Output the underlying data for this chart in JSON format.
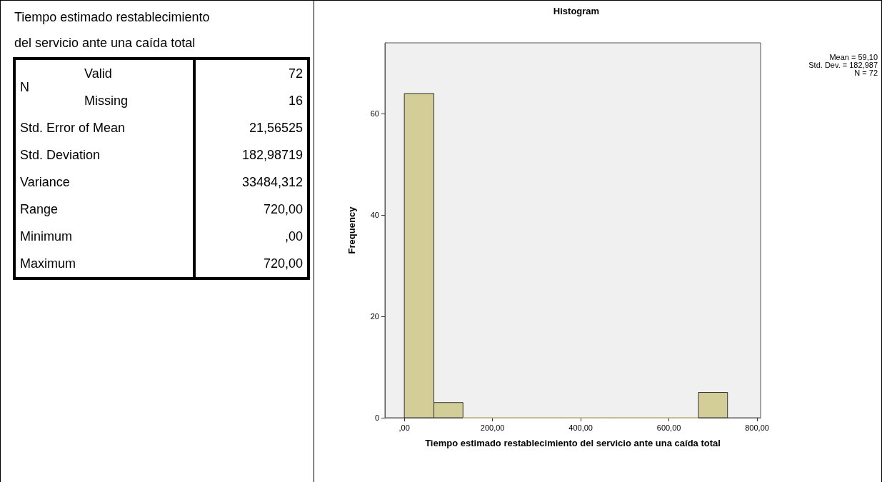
{
  "chart_data": [
    {
      "type": "other",
      "title": "Tiempo estimado restablecimiento del servicio ante una caída total",
      "annotations": [
        "N",
        "Valid",
        "72",
        "Missing",
        "16",
        "Std. Error of Mean",
        "21,56525",
        "Std. Deviation",
        "182,98719",
        "Variance",
        "33484,312",
        "Range",
        "720,00",
        "Minimum",
        ",00",
        "Maximum",
        "720,00"
      ]
    },
    {
      "type": "histogram",
      "title": "Histogram",
      "xlabel": "Tiempo estimado restablecimiento del servicio ante una caída total",
      "ylabel": "Frequency",
      "bins": [
        0,
        67,
        133,
        200,
        267,
        333,
        400,
        467,
        533,
        600,
        667,
        733
      ],
      "values": [
        64,
        3,
        0,
        0,
        0,
        0,
        0,
        0,
        0,
        0,
        5
      ],
      "color": "#d3ce97",
      "xlim": [
        -44,
        808
      ],
      "ylim": [
        0,
        74
      ],
      "xticks": [
        {
          "value": 0,
          "label": ",00"
        },
        {
          "value": 200,
          "label": "200,00"
        },
        {
          "value": 400,
          "label": "400,00"
        },
        {
          "value": 600,
          "label": "600,00"
        },
        {
          "value": 800,
          "label": "800,00"
        }
      ],
      "yticks": [
        0,
        20,
        40,
        60
      ],
      "annotations": [
        "Mean = 59,10",
        "Std. Dev. = 182,987",
        "N = 72"
      ]
    }
  ]
}
